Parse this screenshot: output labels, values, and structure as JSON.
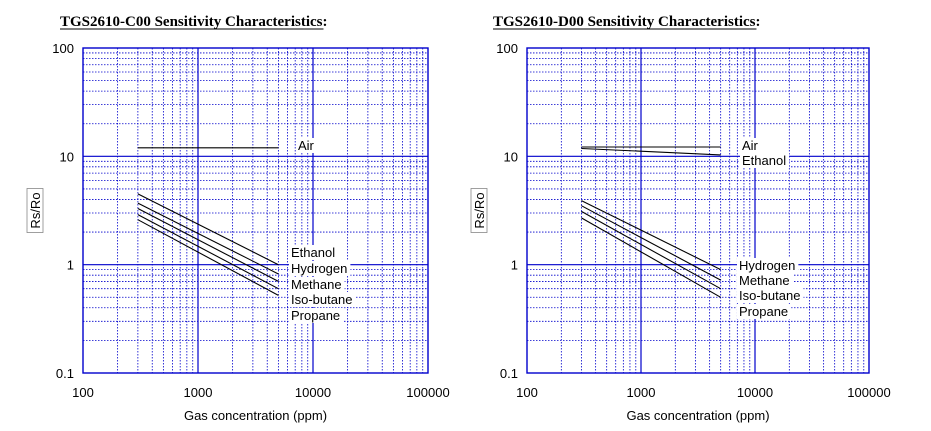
{
  "chart_data": [
    {
      "type": "line",
      "title": "TGS2610-C00 Sensitivity Characteristics:",
      "xlabel": "Gas concentration (ppm)",
      "ylabel": "Rs/Ro",
      "xscale": "log",
      "yscale": "log",
      "xlim": [
        100,
        100000
      ],
      "ylim": [
        0.1,
        100
      ],
      "xticks": [
        "100",
        "1000",
        "10000",
        "100000"
      ],
      "yticks": [
        "0.1",
        "1",
        "10",
        "100"
      ],
      "grid": true,
      "line_color": "#000000",
      "grid_color": "#0000cc",
      "series": [
        {
          "name": "Air",
          "x": [
            300,
            5000
          ],
          "y": [
            12,
            12
          ]
        },
        {
          "name": "Ethanol",
          "x": [
            300,
            5000
          ],
          "y": [
            4.5,
            1.0
          ]
        },
        {
          "name": "Hydrogen",
          "x": [
            300,
            5000
          ],
          "y": [
            3.7,
            0.82
          ]
        },
        {
          "name": "Methane",
          "x": [
            300,
            5000
          ],
          "y": [
            3.3,
            0.7
          ]
        },
        {
          "name": "Iso-butane",
          "x": [
            300,
            5000
          ],
          "y": [
            2.9,
            0.6
          ]
        },
        {
          "name": "Propane",
          "x": [
            300,
            5000
          ],
          "y": [
            2.6,
            0.52
          ]
        }
      ]
    },
    {
      "type": "line",
      "title": "TGS2610-D00 Sensitivity Characteristics:",
      "xlabel": "Gas concentration (ppm)",
      "ylabel": "Rs/Ro",
      "xscale": "log",
      "yscale": "log",
      "xlim": [
        100,
        100000
      ],
      "ylim": [
        0.1,
        100
      ],
      "xticks": [
        "100",
        "1000",
        "10000",
        "100000"
      ],
      "yticks": [
        "0.1",
        "1",
        "10",
        "100"
      ],
      "grid": true,
      "line_color": "#000000",
      "grid_color": "#0000cc",
      "series": [
        {
          "name": "Air",
          "x": [
            300,
            5000
          ],
          "y": [
            12.2,
            12.2
          ]
        },
        {
          "name": "Ethanol",
          "x": [
            300,
            5000
          ],
          "y": [
            11.8,
            10.3
          ]
        },
        {
          "name": "Hydrogen",
          "x": [
            300,
            5000
          ],
          "y": [
            3.9,
            0.9
          ]
        },
        {
          "name": "Methane",
          "x": [
            300,
            5000
          ],
          "y": [
            3.5,
            0.72
          ]
        },
        {
          "name": "Iso-butane",
          "x": [
            300,
            5000
          ],
          "y": [
            3.1,
            0.6
          ]
        },
        {
          "name": "Propane",
          "x": [
            300,
            5000
          ],
          "y": [
            2.7,
            0.5
          ]
        }
      ]
    }
  ]
}
